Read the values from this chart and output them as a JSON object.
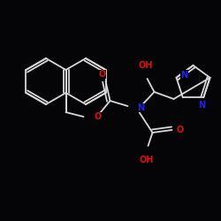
{
  "bg": "#050508",
  "bc": "#d8d8d8",
  "nc": "#2020ee",
  "oc": "#dd1111",
  "lw": 1.3,
  "fs": 7.0,
  "figsize": [
    2.5,
    2.5
  ],
  "dpi": 100,
  "xlim": [
    0,
    250
  ],
  "ylim": [
    0,
    250
  ]
}
